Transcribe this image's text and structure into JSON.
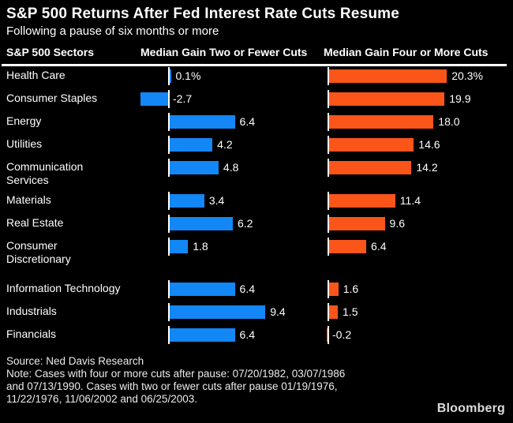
{
  "header": {
    "title": "S&P 500 Returns After Fed Interest Rate Cuts Resume",
    "subtitle": "Following a pause of six months or more"
  },
  "columns": {
    "sector": "S&P 500 Sectors",
    "col1": "Median Gain Two or Fewer Cuts",
    "col2": "Median Gain Four or More Cuts"
  },
  "chart_data": {
    "type": "bar",
    "orientation": "horizontal",
    "title": "S&P 500 Returns After Fed Interest Rate Cuts Resume",
    "subtitle": "Following a pause of six months or more",
    "unit": "%",
    "categories": [
      "Health Care",
      "Consumer Staples",
      "Energy",
      "Utilities",
      "Communication Services",
      "Materials",
      "Real Estate",
      "Consumer Discretionary",
      "Information Technology",
      "Industrials",
      "Financials"
    ],
    "category_display": [
      "Health Care",
      "Consumer Staples",
      "Energy",
      "Utilities",
      "Communication\nServices",
      "Materials",
      "Real Estate",
      "Consumer\nDiscretionary",
      "Information Technology",
      "Industrials",
      "Financials"
    ],
    "group_break_index": 8,
    "series": [
      {
        "name": "Median Gain Two or Fewer Cuts",
        "color": "#1287f5",
        "values": [
          0.1,
          -2.7,
          6.4,
          4.2,
          4.8,
          3.4,
          6.2,
          1.8,
          6.4,
          9.4,
          6.4
        ],
        "labels": [
          "0.1%",
          "-2.7",
          "6.4",
          "4.2",
          "4.8",
          "3.4",
          "6.2",
          "1.8",
          "6.4",
          "9.4",
          "6.4"
        ]
      },
      {
        "name": "Median Gain Four or More Cuts",
        "color": "#fb551a",
        "values": [
          20.3,
          19.9,
          18.0,
          14.6,
          14.2,
          11.4,
          9.6,
          6.4,
          1.6,
          1.5,
          -0.2
        ],
        "labels": [
          "20.3%",
          "19.9",
          "18.0",
          "14.6",
          "14.2",
          "11.4",
          "9.6",
          "6.4",
          "1.6",
          "1.5",
          "-0.2"
        ]
      }
    ],
    "colors": {
      "background": "#000000",
      "text": "#ffffff",
      "blue_series": "#1287f5",
      "orange_series": "#fb551a",
      "axis": "#ffffff"
    }
  },
  "footer": {
    "source": "Source: Ned Davis Research",
    "note_lines": [
      "Note: Cases with four or more cuts after pause: 07/20/1982, 03/07/1986",
      "and 07/13/1990. Cases with two or fewer cuts after pause 01/19/1976,",
      "11/22/1976, 11/06/2002 and 06/25/2003."
    ]
  },
  "branding": "Bloomberg"
}
